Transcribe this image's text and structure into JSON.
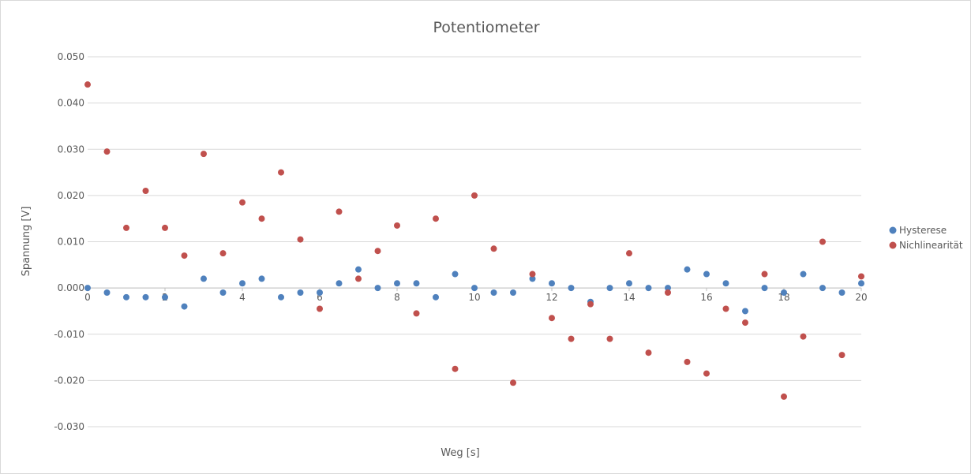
{
  "chart_data": {
    "type": "scatter",
    "title": "Potentiometer",
    "xlabel": "Weg [s]",
    "ylabel": "Spannung [V]",
    "xlim": [
      0,
      20
    ],
    "ylim": [
      -0.03,
      0.05
    ],
    "x_ticks": [
      "0",
      "2",
      "4",
      "6",
      "8",
      "10",
      "12",
      "14",
      "16",
      "18",
      "20"
    ],
    "y_ticks": [
      "0.050",
      "0.040",
      "0.030",
      "0.020",
      "0.010",
      "0.000",
      "-0.010",
      "-0.020",
      "-0.030"
    ],
    "grid": true,
    "legend_position": "right",
    "series": [
      {
        "name": "Hysterese",
        "color": "#4f81bd",
        "x": [
          0,
          0.5,
          1,
          1.5,
          2,
          2.5,
          3,
          3.5,
          4,
          4.5,
          5,
          5.5,
          6,
          6.5,
          7,
          7.5,
          8,
          8.5,
          9,
          9.5,
          10,
          10.5,
          11,
          11.5,
          12,
          12.5,
          13,
          13.5,
          14,
          14.5,
          15,
          15.5,
          16,
          16.5,
          17,
          17.5,
          18,
          18.5,
          19,
          19.5,
          20
        ],
        "y": [
          0.0,
          -0.001,
          -0.002,
          -0.002,
          -0.002,
          -0.004,
          0.002,
          -0.001,
          0.001,
          0.002,
          -0.002,
          -0.001,
          -0.001,
          0.001,
          0.004,
          0.0,
          0.001,
          0.001,
          -0.002,
          0.003,
          0.0,
          -0.001,
          -0.001,
          0.002,
          0.001,
          0.0,
          -0.003,
          0.0,
          0.001,
          0.0,
          0.0,
          0.004,
          0.003,
          0.001,
          -0.005,
          0.0,
          -0.001,
          0.003,
          0.0,
          -0.001,
          0.001
        ]
      },
      {
        "name": "Nichlinearität",
        "color": "#c0504d",
        "x": [
          0,
          0.5,
          1,
          1.5,
          2,
          2.5,
          3,
          3.5,
          4,
          4.5,
          5,
          5.5,
          6,
          6.5,
          7,
          7.5,
          8,
          8.5,
          9,
          9.5,
          10,
          10.5,
          11,
          11.5,
          12,
          12.5,
          13,
          13.5,
          14,
          14.5,
          15,
          15.5,
          16,
          16.5,
          17,
          17.5,
          18,
          18.5,
          19,
          19.5,
          20
        ],
        "y": [
          0.044,
          0.0295,
          0.013,
          0.021,
          0.013,
          0.007,
          0.029,
          0.0075,
          0.0185,
          0.015,
          0.025,
          0.0105,
          -0.0045,
          0.0165,
          0.002,
          0.008,
          0.0135,
          -0.0055,
          0.015,
          -0.0175,
          0.02,
          0.0085,
          -0.0205,
          0.003,
          -0.0065,
          -0.011,
          -0.0035,
          -0.011,
          0.0075,
          -0.014,
          -0.001,
          -0.016,
          -0.0185,
          -0.0045,
          -0.0075,
          0.003,
          -0.0235,
          -0.0105,
          0.01,
          -0.0145,
          0.0025
        ]
      }
    ]
  }
}
